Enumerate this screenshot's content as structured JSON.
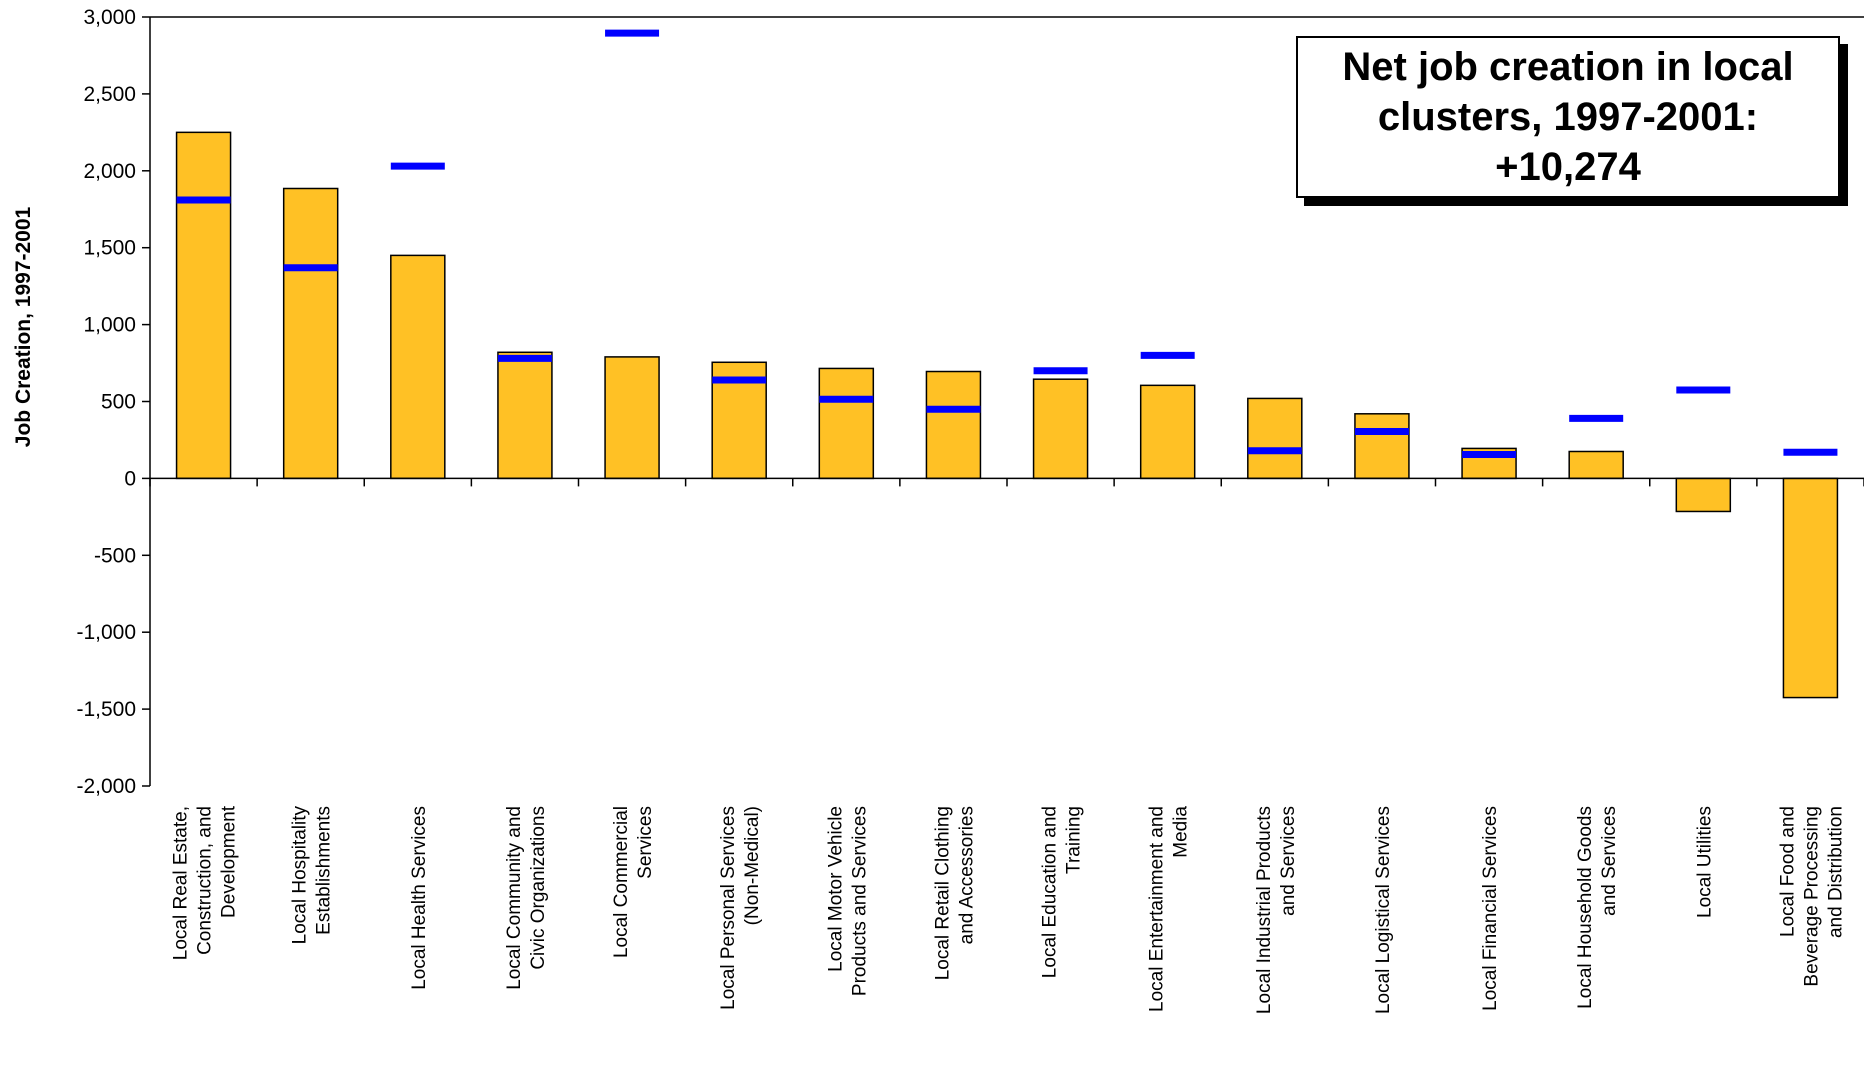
{
  "chart_data": {
    "type": "bar",
    "title": "Net job creation in local clusters, 1997-2001: +10,274",
    "xlabel": "",
    "ylabel": "Job Creation, 1997-2001",
    "ylim": [
      -2000,
      3000
    ],
    "yticks": [
      3000,
      2500,
      2000,
      1500,
      1000,
      500,
      0,
      -500,
      -1000,
      -1500,
      -2000
    ],
    "ytick_labels": [
      "3,000",
      "2,500",
      "2,000",
      "1,500",
      "1,000",
      "500",
      "0",
      "-500",
      "-1,000",
      "-1,500",
      "-2,000"
    ],
    "grid": false,
    "categories": [
      [
        "Local Real Estate,",
        "Construction, and",
        "Development"
      ],
      [
        "Local Hospitality",
        "Establishments"
      ],
      [
        "Local Health Services"
      ],
      [
        "Local Community and",
        "Civic Organizations"
      ],
      [
        "Local Commercial",
        "Services"
      ],
      [
        "Local Personal Services",
        "(Non-Medical)"
      ],
      [
        "Local Motor Vehicle",
        "Products and Services"
      ],
      [
        "Local Retail Clothing",
        "and Accessories"
      ],
      [
        "Local Education and",
        "Training"
      ],
      [
        "Local Entertainment and",
        "Media"
      ],
      [
        "Local Industrial Products",
        "and Services"
      ],
      [
        "Local Logistical Services"
      ],
      [
        "Local Financial Services"
      ],
      [
        "Local Household Goods",
        "and Services"
      ],
      [
        "Local Utilities"
      ],
      [
        "Local Food and",
        "Beverage Processing",
        "and Distribution"
      ]
    ],
    "series": [
      {
        "type": "bar",
        "color": "#FFC125",
        "values": [
          2250,
          1885,
          1450,
          820,
          790,
          755,
          715,
          695,
          645,
          605,
          520,
          420,
          195,
          175,
          -215,
          -1425
        ]
      },
      {
        "type": "marker",
        "color": "#0000FF",
        "values": [
          1810,
          1370,
          2030,
          780,
          2895,
          640,
          515,
          450,
          700,
          800,
          180,
          305,
          155,
          390,
          575,
          170
        ]
      }
    ]
  },
  "colors": {
    "bar_fill": "#FFC125",
    "bar_stroke": "#000000",
    "marker": "#0000FF"
  }
}
